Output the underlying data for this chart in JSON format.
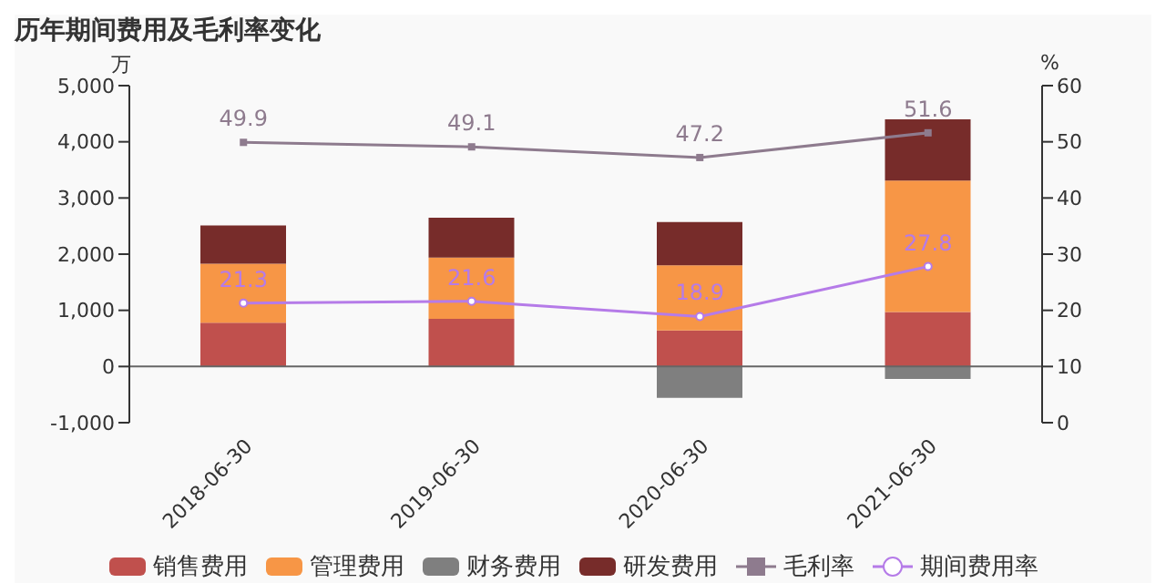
{
  "chart_data": {
    "type": "bar",
    "title": "历年期间费用及毛利率变化",
    "ylabel": "万",
    "y2label": "%",
    "categories": [
      "2018-06-30",
      "2019-06-30",
      "2020-06-30",
      "2021-06-30"
    ],
    "stacked": true,
    "series": [
      {
        "name": "销售费用",
        "color": "#c0504d",
        "values": [
          780,
          850,
          640,
          970
        ]
      },
      {
        "name": "管理费用",
        "color": "#f79646",
        "values": [
          1050,
          1090,
          1160,
          2340
        ]
      },
      {
        "name": "财务费用",
        "color": "#7f7f7f",
        "values": [
          0,
          0,
          -560,
          -220
        ]
      },
      {
        "name": "研发费用",
        "color": "#772c2a",
        "values": [
          680,
          710,
          770,
          1090
        ]
      },
      {
        "name": "毛利率",
        "type": "line",
        "axis": "y2",
        "marker": "square",
        "color": "#8e7b8e",
        "values": [
          49.9,
          49.1,
          47.2,
          51.6
        ],
        "value_labels": [
          "49.9",
          "49.1",
          "47.2",
          "51.6"
        ]
      },
      {
        "name": "期间费用率",
        "type": "line",
        "axis": "y2",
        "marker": "circle",
        "color": "#b57be8",
        "values": [
          21.3,
          21.6,
          18.9,
          27.8
        ],
        "value_labels": [
          "21.3",
          "21.6",
          "18.9",
          "27.8"
        ]
      }
    ],
    "ylim": [
      -1000,
      5000
    ],
    "yticks": [
      {
        "value": -1000,
        "label": "-1,000"
      },
      0,
      {
        "value": 1000,
        "label": "1,000"
      },
      {
        "value": 2000,
        "label": "2,000"
      },
      {
        "value": 3000,
        "label": "3,000"
      },
      {
        "value": 4000,
        "label": "4,000"
      },
      {
        "value": 5000,
        "label": "5,000"
      }
    ],
    "y2lim": [
      0,
      60
    ],
    "y2ticks": [
      0,
      10,
      20,
      30,
      40,
      50,
      60
    ],
    "legend": "bottom"
  }
}
